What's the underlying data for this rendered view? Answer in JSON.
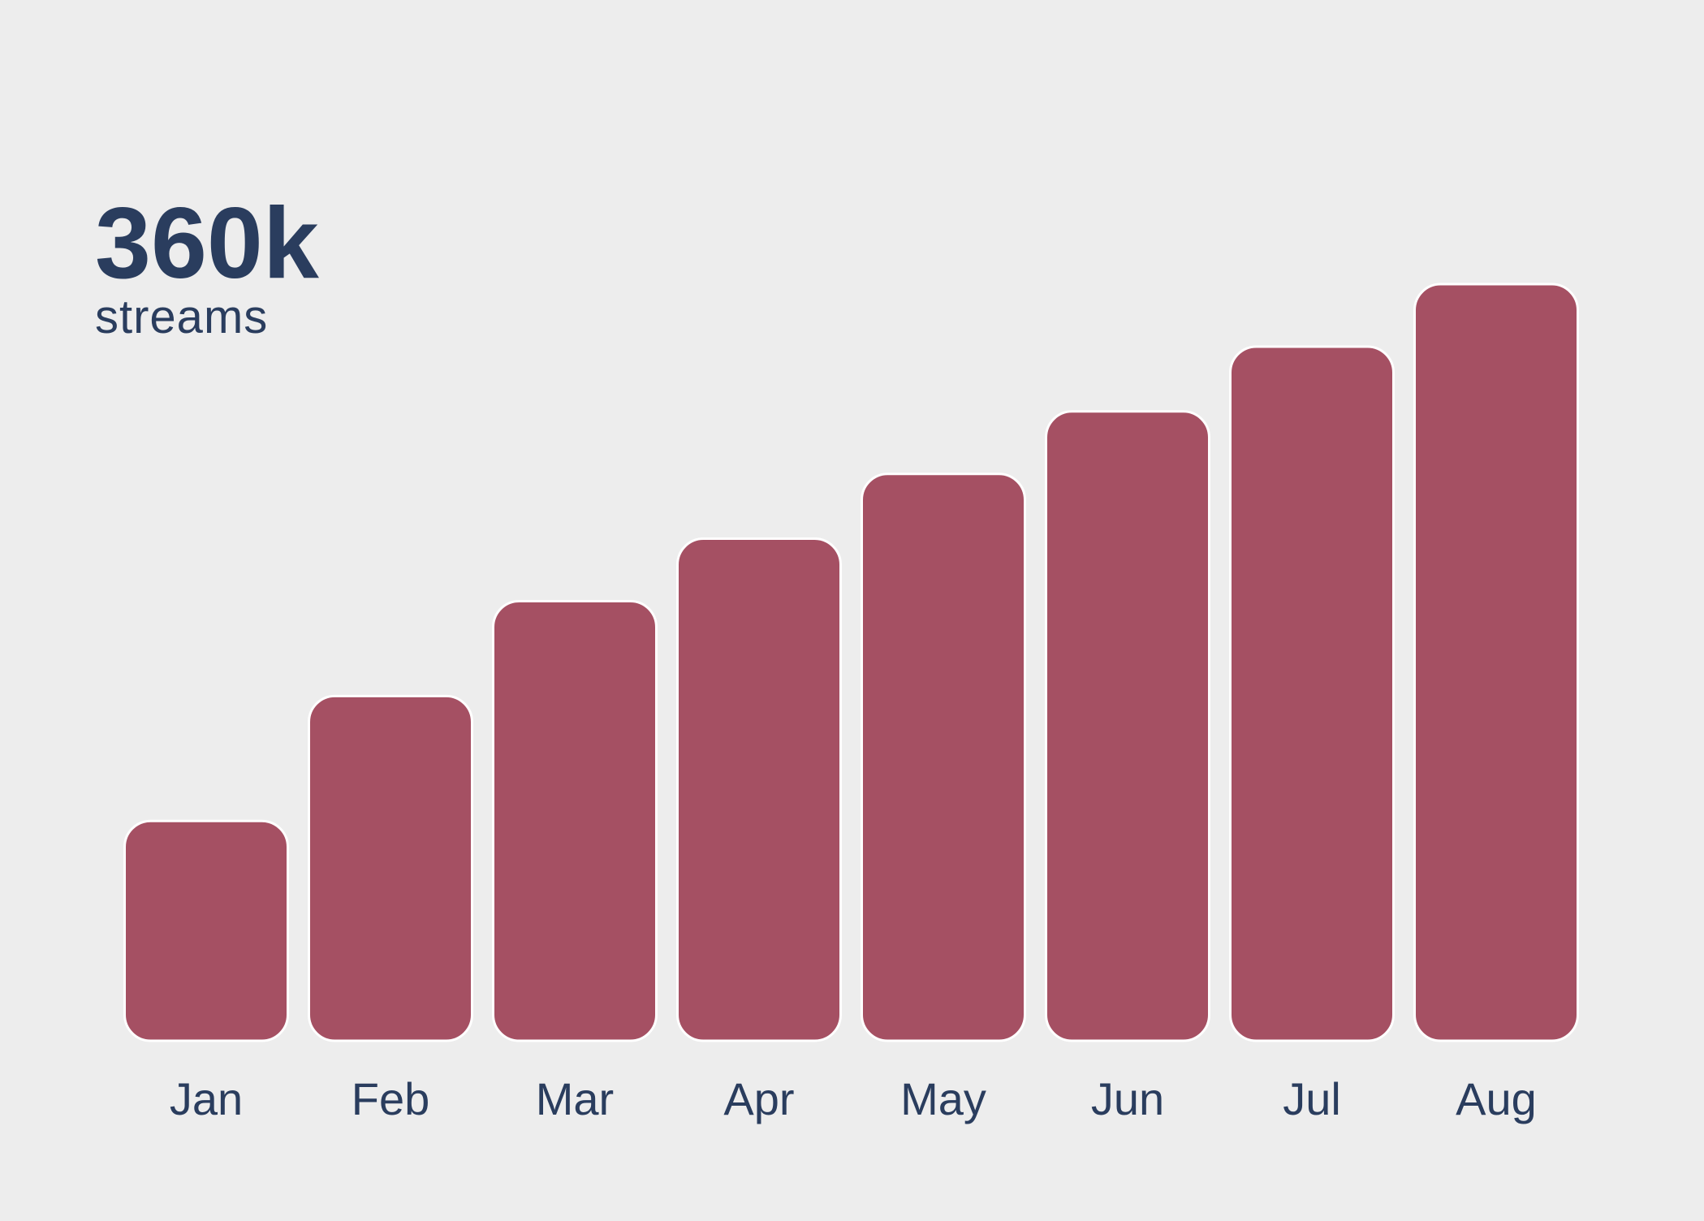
{
  "chart_data": {
    "type": "bar",
    "headline_value": "360k",
    "headline_label": "streams",
    "categories": [
      "Jan",
      "Feb",
      "Mar",
      "Apr",
      "May",
      "Jun",
      "Jul",
      "Aug"
    ],
    "values": [
      95,
      149,
      190,
      217,
      245,
      272,
      300,
      327
    ],
    "ylim": [
      0,
      360
    ],
    "grid": false,
    "legend": "none",
    "colors": {
      "bar": "#a55063",
      "bar_stroke": "#ffffff",
      "text": "#2a3d5e",
      "background": "#ededed"
    }
  }
}
